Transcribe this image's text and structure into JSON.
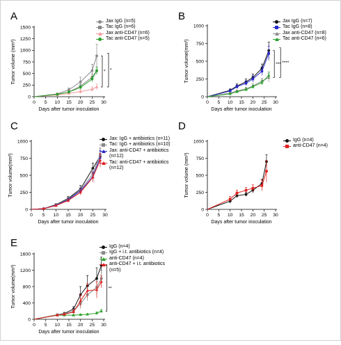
{
  "colors": {
    "black": "#111111",
    "gray": "#8a8a8a",
    "blue": "#2a2acb",
    "red": "#e02020",
    "pink": "#f29a9a",
    "green": "#2aa02a"
  },
  "panels": [
    {
      "letter": "A",
      "ylabel": "Tumor volume (mm³)",
      "xlabel": "Days after tumor inoculation"
    },
    {
      "letter": "B",
      "ylabel": "Tumor volume(mm³)",
      "xlabel": "Days after tumor inoculation"
    },
    {
      "letter": "C",
      "ylabel": "Tumor volume(mm³)",
      "xlabel": "Days after tumor inoculation"
    },
    {
      "letter": "D",
      "ylabel": "Tumor volume (mm³)",
      "xlabel": "Days after tumor inoculation"
    },
    {
      "letter": "E",
      "ylabel": "Tumor volume(mm³)",
      "xlabel": "Days after tumor inoculation"
    }
  ],
  "chart_data": [
    {
      "type": "line",
      "panel": "A",
      "xlabel": "Days after tumor inoculation",
      "ylabel": "Tumor volume (mm³)",
      "xlim": [
        0,
        30
      ],
      "ylim": [
        0,
        1500
      ],
      "xticks": [
        0,
        5,
        10,
        15,
        20,
        25,
        30
      ],
      "yticks": [
        0,
        250,
        500,
        750,
        1000,
        1250,
        1500
      ],
      "legend_position": "top-right",
      "significance": [
        "*",
        "*"
      ],
      "series": [
        {
          "name": "Jax IgG (n=5)",
          "color": "gray",
          "marker": "circle",
          "x": [
            10,
            15,
            20,
            25,
            27
          ],
          "y": [
            60,
            150,
            320,
            560,
            880
          ],
          "err": [
            15,
            40,
            100,
            140,
            250
          ]
        },
        {
          "name": "Tac IgG (n=6)",
          "color": "gray",
          "marker": "square",
          "x": [
            10,
            15,
            20,
            25,
            27
          ],
          "y": [
            50,
            100,
            230,
            420,
            560
          ],
          "err": [
            10,
            30,
            50,
            70,
            80
          ]
        },
        {
          "name": "Jax anti-CD47 (n=6)",
          "color": "pink",
          "marker": "triangle",
          "x": [
            10,
            15,
            20,
            25,
            27
          ],
          "y": [
            40,
            70,
            110,
            160,
            210
          ],
          "err": [
            10,
            20,
            40,
            50,
            60
          ]
        },
        {
          "name": "Tac anti-CD47 (n=5)",
          "color": "green",
          "marker": "circle",
          "x": [
            10,
            15,
            20,
            25,
            27
          ],
          "y": [
            50,
            100,
            200,
            380,
            560
          ],
          "err": [
            10,
            20,
            40,
            60,
            80
          ]
        }
      ]
    },
    {
      "type": "line",
      "panel": "B",
      "xlabel": "Days after tumor inoculation",
      "ylabel": "Tumor volume(mm³)",
      "xlim": [
        0,
        30
      ],
      "ylim": [
        0,
        1000
      ],
      "xticks": [
        0,
        5,
        10,
        15,
        20,
        25,
        30
      ],
      "yticks": [
        0,
        250,
        500,
        750,
        1000
      ],
      "legend_position": "top-right",
      "significance": [
        "***",
        "****"
      ],
      "series": [
        {
          "name": "Jax IgG (n=7)",
          "color": "black",
          "marker": "circle",
          "x": [
            10,
            13,
            17,
            20,
            24,
            27
          ],
          "y": [
            90,
            150,
            210,
            270,
            400,
            650
          ],
          "err": [
            20,
            30,
            40,
            50,
            60,
            120
          ]
        },
        {
          "name": "Tac IgG (n=8)",
          "color": "blue",
          "marker": "square",
          "x": [
            10,
            13,
            17,
            20,
            24,
            27
          ],
          "y": [
            80,
            140,
            190,
            250,
            360,
            610
          ],
          "err": [
            20,
            25,
            35,
            45,
            60,
            100
          ]
        },
        {
          "name": "Jax anti-CD47 (n=8)",
          "color": "gray",
          "marker": "triangle",
          "x": [
            10,
            13,
            17,
            20,
            24,
            27
          ],
          "y": [
            50,
            80,
            110,
            150,
            220,
            270
          ],
          "err": [
            10,
            15,
            20,
            30,
            40,
            60
          ]
        },
        {
          "name": "Tac anti-CD47 (n=6)",
          "color": "green",
          "marker": "triangle",
          "x": [
            10,
            13,
            17,
            20,
            24,
            27
          ],
          "y": [
            40,
            70,
            100,
            140,
            200,
            300
          ],
          "err": [
            10,
            15,
            20,
            25,
            35,
            50
          ]
        }
      ]
    },
    {
      "type": "line",
      "panel": "C",
      "xlabel": "Days after tumor inoculation",
      "ylabel": "Tumor volume(mm³)",
      "xlim": [
        0,
        30
      ],
      "ylim": [
        0,
        1000
      ],
      "xticks": [
        0,
        5,
        10,
        15,
        20,
        25,
        30
      ],
      "yticks": [
        0,
        250,
        500,
        750,
        1000
      ],
      "legend_position": "top-right",
      "series": [
        {
          "name": "Jax: IgG + antibiotics (n=11)",
          "color": "black",
          "marker": "circle",
          "x": [
            5,
            10,
            15,
            20,
            25,
            28
          ],
          "y": [
            10,
            70,
            160,
            300,
            600,
            780
          ],
          "err": [
            5,
            10,
            30,
            50,
            80,
            120
          ]
        },
        {
          "name": "Tac: IgG + antibiotics (n=10)",
          "color": "gray",
          "marker": "square",
          "x": [
            5,
            10,
            15,
            20,
            25,
            28
          ],
          "y": [
            10,
            65,
            150,
            280,
            520,
            800
          ],
          "err": [
            5,
            10,
            25,
            50,
            70,
            100
          ]
        },
        {
          "name": "Jax: anti-CD47 + antibiotics (n=12)",
          "color": "blue",
          "marker": "triangle",
          "x": [
            5,
            10,
            15,
            20,
            25,
            28
          ],
          "y": [
            10,
            60,
            140,
            270,
            480,
            760
          ],
          "err": [
            5,
            10,
            25,
            40,
            70,
            100
          ]
        },
        {
          "name": "Tac: anti-CD47 + antibiotics (n=12)",
          "color": "red",
          "marker": "triangle",
          "x": [
            5,
            10,
            15,
            20,
            25,
            28
          ],
          "y": [
            10,
            55,
            130,
            250,
            470,
            720
          ],
          "err": [
            5,
            10,
            25,
            40,
            70,
            100
          ]
        }
      ]
    },
    {
      "type": "line",
      "panel": "D",
      "xlabel": "Days after tumor inoculation",
      "ylabel": "Tumor volume (mm³)",
      "xlim": [
        0,
        30
      ],
      "ylim": [
        0,
        1000
      ],
      "xticks": [
        0,
        5,
        10,
        15,
        20,
        25,
        30
      ],
      "yticks": [
        0,
        250,
        500,
        750,
        1000
      ],
      "legend_position": "top-right",
      "series": [
        {
          "name": "IgG (n=4)",
          "color": "black",
          "marker": "circle",
          "x": [
            10,
            13,
            17,
            20,
            24,
            26
          ],
          "y": [
            120,
            200,
            220,
            280,
            380,
            700
          ],
          "err": [
            30,
            30,
            30,
            40,
            60,
            100
          ]
        },
        {
          "name": "anti-CD47 (n=4)",
          "color": "red",
          "marker": "square",
          "x": [
            10,
            13,
            17,
            20,
            24,
            26
          ],
          "y": [
            150,
            240,
            280,
            310,
            350,
            560
          ],
          "err": [
            40,
            40,
            40,
            50,
            80,
            160
          ]
        }
      ]
    },
    {
      "type": "line",
      "panel": "E",
      "xlabel": "Days after tumor inoculation",
      "ylabel": "Tumor volume(mm³)",
      "xlim": [
        0,
        30
      ],
      "ylim": [
        0,
        1600
      ],
      "xticks": [
        0,
        5,
        10,
        15,
        20,
        25,
        30
      ],
      "yticks": [
        0,
        400,
        800,
        1200,
        1600
      ],
      "legend_position": "top-right",
      "significance": [
        "**"
      ],
      "series": [
        {
          "name": "IgG (n=4)",
          "color": "black",
          "marker": "circle",
          "x": [
            10,
            13,
            17,
            20,
            23,
            27,
            29
          ],
          "y": [
            110,
            140,
            250,
            600,
            820,
            1000,
            1320
          ],
          "err": [
            20,
            30,
            60,
            200,
            250,
            260,
            200
          ]
        },
        {
          "name": "IgG + i.t. antibiotics (n=4)",
          "color": "gray",
          "marker": "square",
          "x": [
            10,
            13,
            17,
            20,
            23,
            27,
            29
          ],
          "y": [
            110,
            130,
            200,
            380,
            600,
            780,
            1000
          ],
          "err": [
            20,
            25,
            50,
            120,
            150,
            180,
            200
          ]
        },
        {
          "name": "anti-CD47 (n=4)",
          "color": "green",
          "marker": "triangle",
          "x": [
            10,
            13,
            17,
            20,
            23,
            27,
            29
          ],
          "y": [
            100,
            100,
            100,
            110,
            120,
            150,
            200
          ],
          "err": [
            10,
            10,
            15,
            20,
            20,
            30,
            40
          ]
        },
        {
          "name": "anti-CD47 + i.t. antibiotics (n=5)",
          "color": "red",
          "marker": "triangle",
          "x": [
            10,
            13,
            17,
            20,
            23,
            27,
            29
          ],
          "y": [
            100,
            120,
            180,
            450,
            700,
            720,
            920
          ],
          "err": [
            15,
            25,
            50,
            150,
            180,
            200,
            150
          ]
        }
      ]
    }
  ]
}
